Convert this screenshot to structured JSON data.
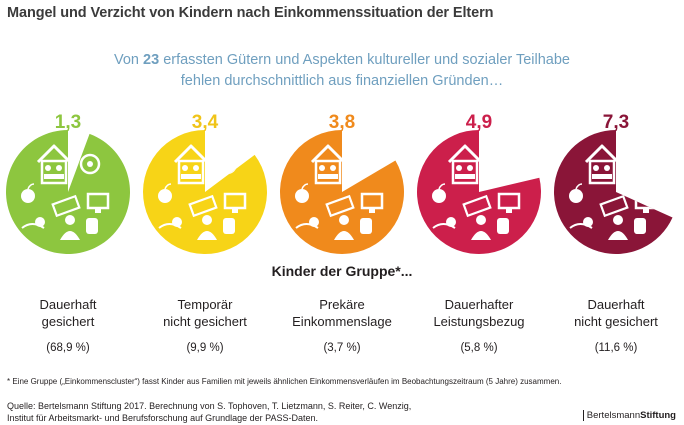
{
  "title": "Mangel und Verzicht von Kindern nach Einkommenssituation der Eltern",
  "subtitle": {
    "line1_pre": "Von ",
    "line1_number": "23",
    "line1_post": " erfassten Gütern und Aspekten kultureller und sozialer Teilhabe",
    "line2": "fehlen durchschnittlich aus finanziellen Gründen…"
  },
  "group_heading": "Kinder der Gruppe*...",
  "footnote": "* Eine Gruppe („Einkommenscluster“) fasst Kinder aus Familien mit jeweils ähnlichen Einkommensverläufen im Beobachtungszeitraum (5 Jahre) zusammen.",
  "source": {
    "line1": "Quelle: Bertelsmann Stiftung 2017. Berechnung von S. Tophoven, T. Lietzmann, S. Reiter, C. Wenzig,",
    "line2": "Institut für Arbeitsmarkt- und Berufsforschung auf Grundlage der PASS-Daten."
  },
  "brand": {
    "regular": "Bertelsmann",
    "bold": "Stiftung"
  },
  "chart_data": {
    "type": "pie",
    "total_items": 23,
    "categories": [
      "Dauerhaft gesichert",
      "Temporär nicht gesichert",
      "Prekäre Einkommenslage",
      "Dauerhafter Leistungsbezug",
      "Dauerhaft nicht gesichert"
    ],
    "label_lines": [
      [
        "Dauerhaft",
        "gesichert"
      ],
      [
        "Temporär",
        "nicht gesichert"
      ],
      [
        "Prekäre",
        "Einkommenslage"
      ],
      [
        "Dauerhafter",
        "Leistungsbezug"
      ],
      [
        "Dauerhaft",
        "nicht gesichert"
      ]
    ],
    "shares": [
      "(68,9 %)",
      "(9,9 %)",
      "(3,7 %)",
      "(5,8 %)",
      "(11,6 %)"
    ],
    "values": [
      1.3,
      3.4,
      3.8,
      4.9,
      7.3
    ],
    "value_labels": [
      "1,3",
      "3,4",
      "3,8",
      "4,9",
      "7,3"
    ],
    "colors": [
      "#8dc63f",
      "#f7d417",
      "#f08a1c",
      "#cc1f4b",
      "#8a1538"
    ],
    "value_label_colors": [
      "#8dc63f",
      "#f0c419",
      "#f08a1c",
      "#cc1f4b",
      "#8a1538"
    ]
  }
}
